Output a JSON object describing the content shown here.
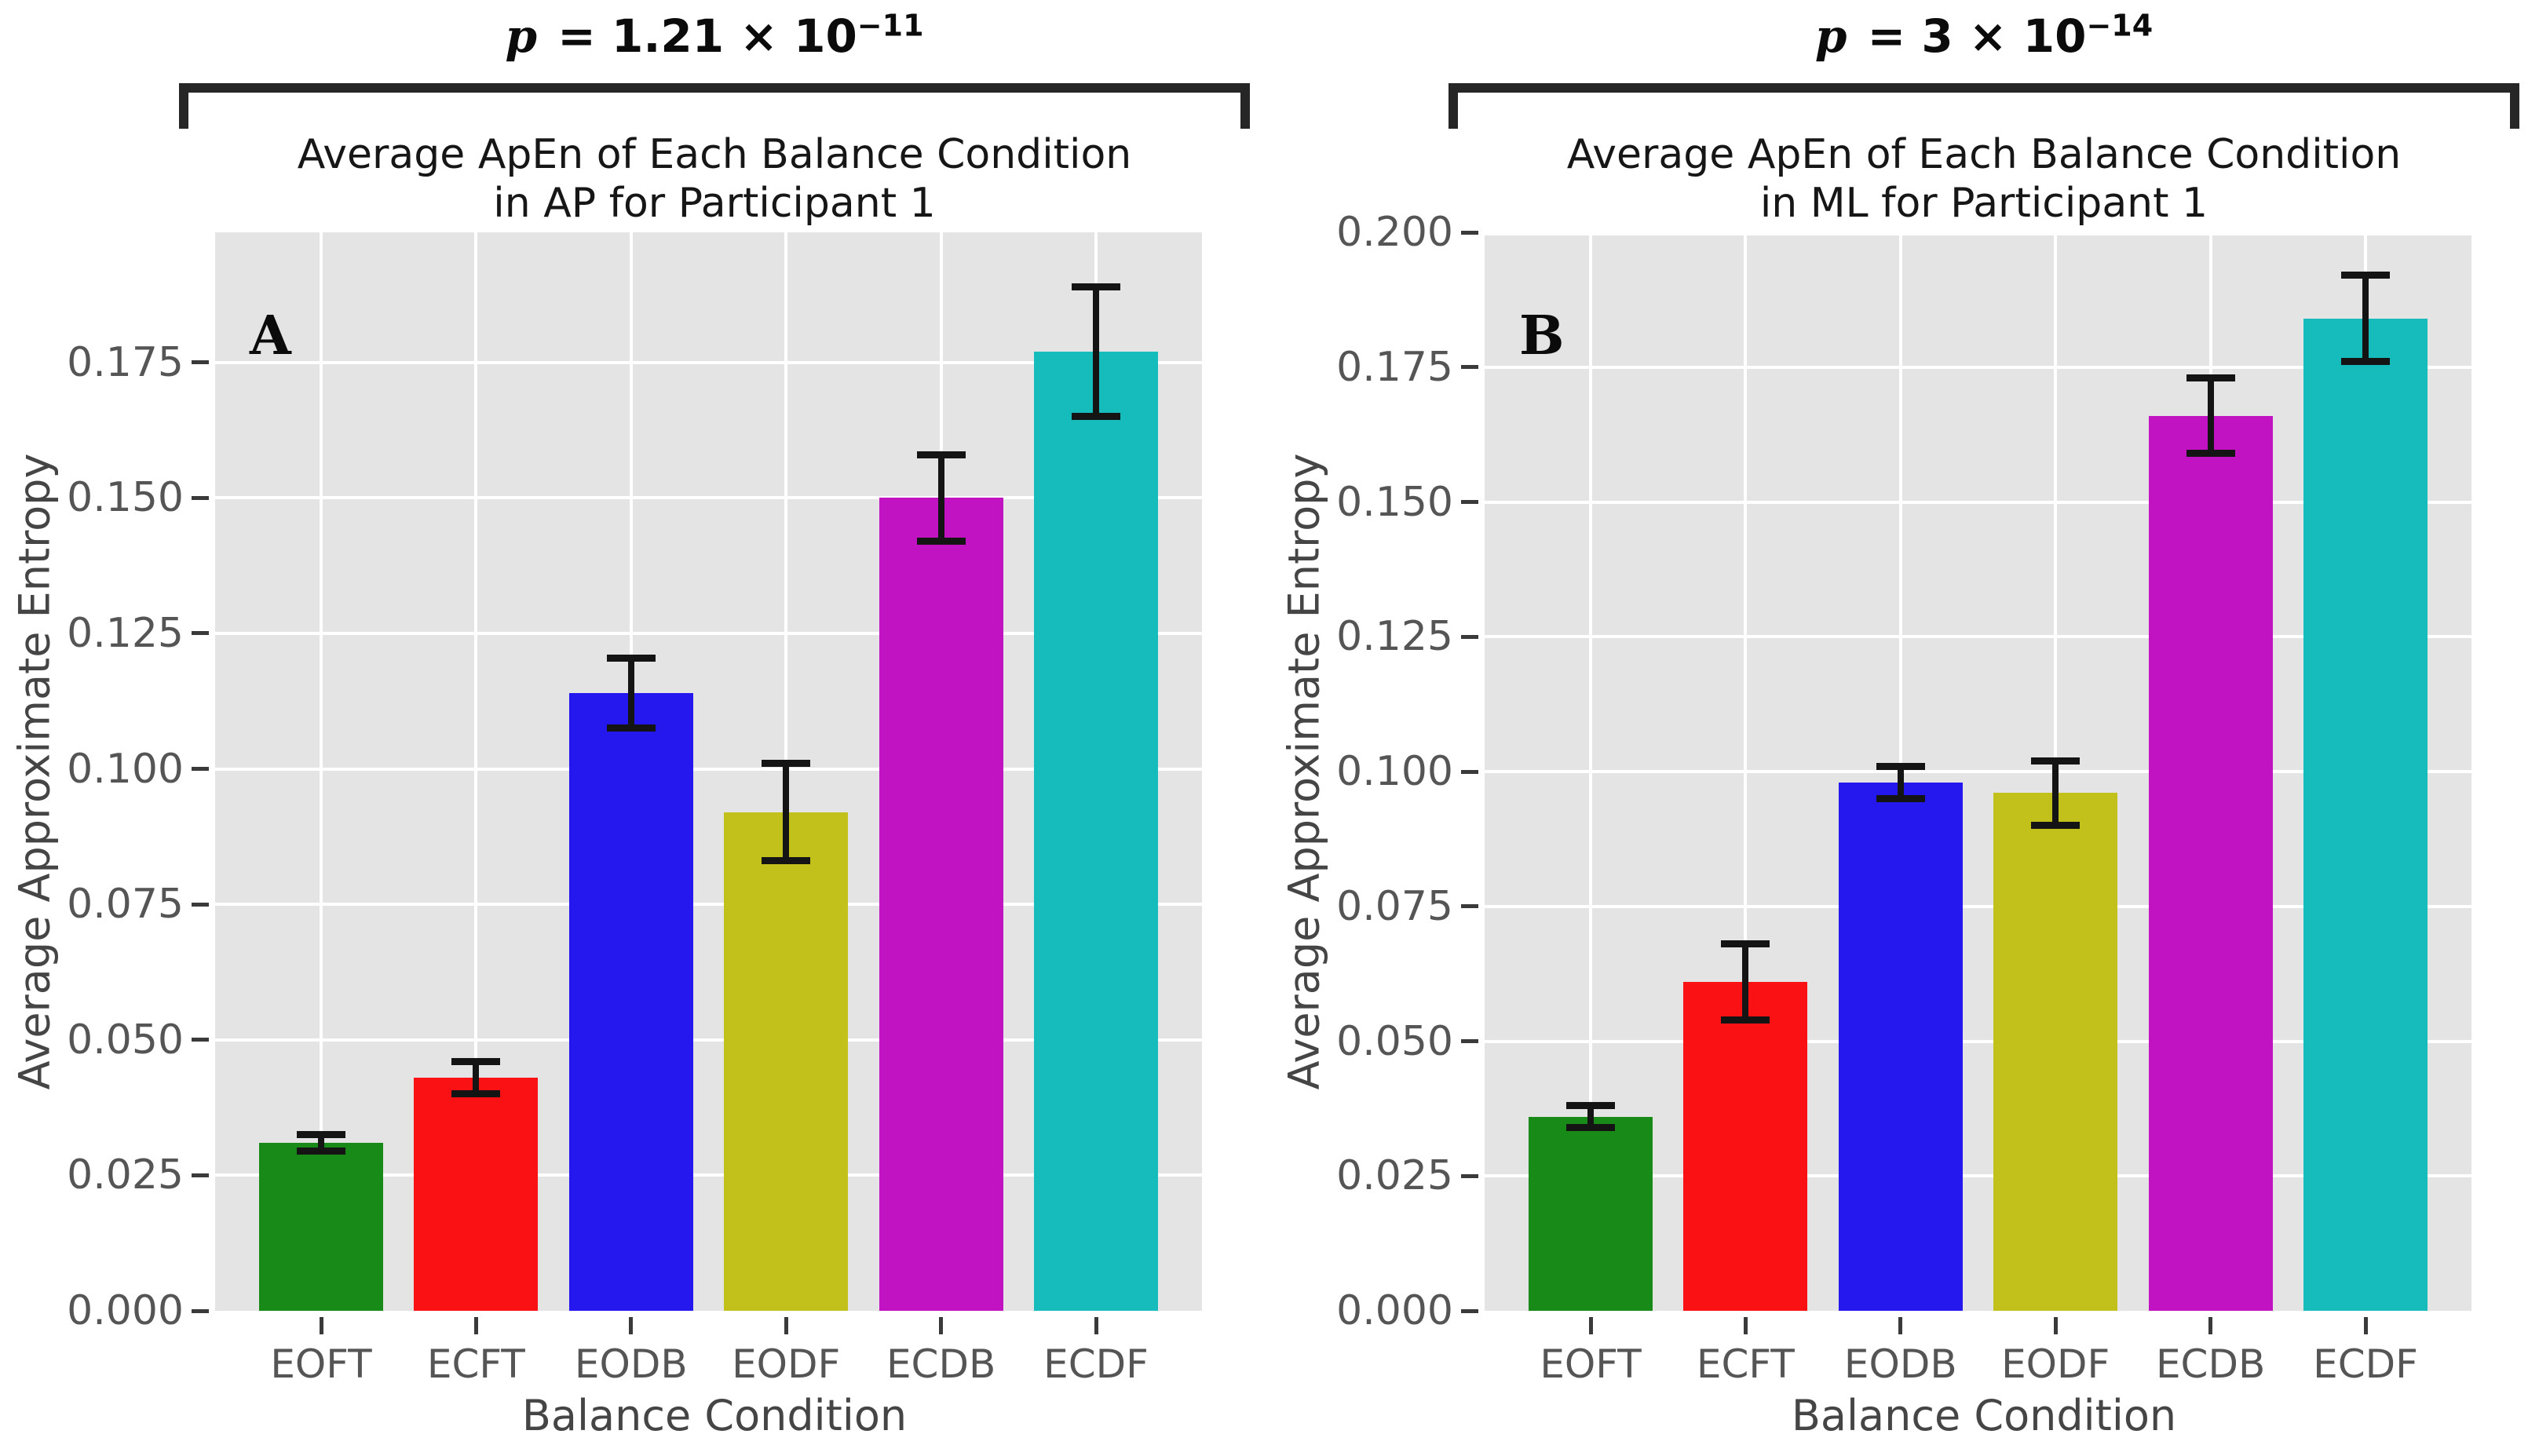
{
  "figure": {
    "background": "#ffffff",
    "plot_background": "#e4e4e4",
    "gridline_color": "#ffffff",
    "error_bar_color": "#141414",
    "bracket_color": "#262626"
  },
  "panels": [
    {
      "label": "A",
      "p_italic": "p",
      "p_text": " = 1.21 × 10",
      "p_exponent": "−11",
      "title_line1": "Average ApEn of Each Balance Condition",
      "title_line2": "in AP for Participant 1",
      "ylabel": "Average Approximate Entropy",
      "xlabel": "Balance Condition"
    },
    {
      "label": "B",
      "p_italic": "p",
      "p_text": " = 3 × 10",
      "p_exponent": "−14",
      "title_line1": "Average ApEn of Each Balance Condition",
      "title_line2": "in ML for Participant 1",
      "ylabel": "Average Approximate Entropy",
      "xlabel": "Balance Condition"
    }
  ],
  "chart_data": [
    {
      "type": "bar",
      "panel_label": "A",
      "title": "Average ApEn of Each Balance Condition in AP for Participant 1",
      "annotation": "p = 1.21 × 10⁻¹¹",
      "categories": [
        "EOFT",
        "ECFT",
        "EODB",
        "EODF",
        "ECDB",
        "ECDF"
      ],
      "values": [
        0.031,
        0.043,
        0.114,
        0.092,
        0.15,
        0.177
      ],
      "errors": [
        0.0015,
        0.003,
        0.0065,
        0.009,
        0.008,
        0.012
      ],
      "bar_colors": [
        "#178a17",
        "#fa1114",
        "#2418ee",
        "#c2c11b",
        "#c213c2",
        "#16bcbc"
      ],
      "xlabel": "Balance Condition",
      "ylabel": "Average Approximate Entropy",
      "ylim": [
        0,
        0.199
      ],
      "yticks": [
        0.0,
        0.025,
        0.05,
        0.075,
        0.1,
        0.125,
        0.15,
        0.175
      ],
      "grid": true,
      "legend": "none"
    },
    {
      "type": "bar",
      "panel_label": "B",
      "title": "Average ApEn of Each Balance Condition in ML for Participant 1",
      "annotation": "p = 3 × 10⁻¹⁴",
      "categories": [
        "EOFT",
        "ECFT",
        "EODB",
        "EODF",
        "ECDB",
        "ECDF"
      ],
      "values": [
        0.036,
        0.061,
        0.098,
        0.096,
        0.166,
        0.184
      ],
      "errors": [
        0.002,
        0.007,
        0.003,
        0.006,
        0.007,
        0.008
      ],
      "bar_colors": [
        "#178a17",
        "#fa1114",
        "#2418ee",
        "#c2c11b",
        "#c213c2",
        "#16bcbc"
      ],
      "xlabel": "Balance Condition",
      "ylabel": "Average Approximate Entropy",
      "ylim": [
        0,
        0.2
      ],
      "yticks": [
        0.0,
        0.025,
        0.05,
        0.075,
        0.1,
        0.125,
        0.15,
        0.175,
        0.2
      ],
      "grid": true,
      "legend": "none"
    }
  ]
}
